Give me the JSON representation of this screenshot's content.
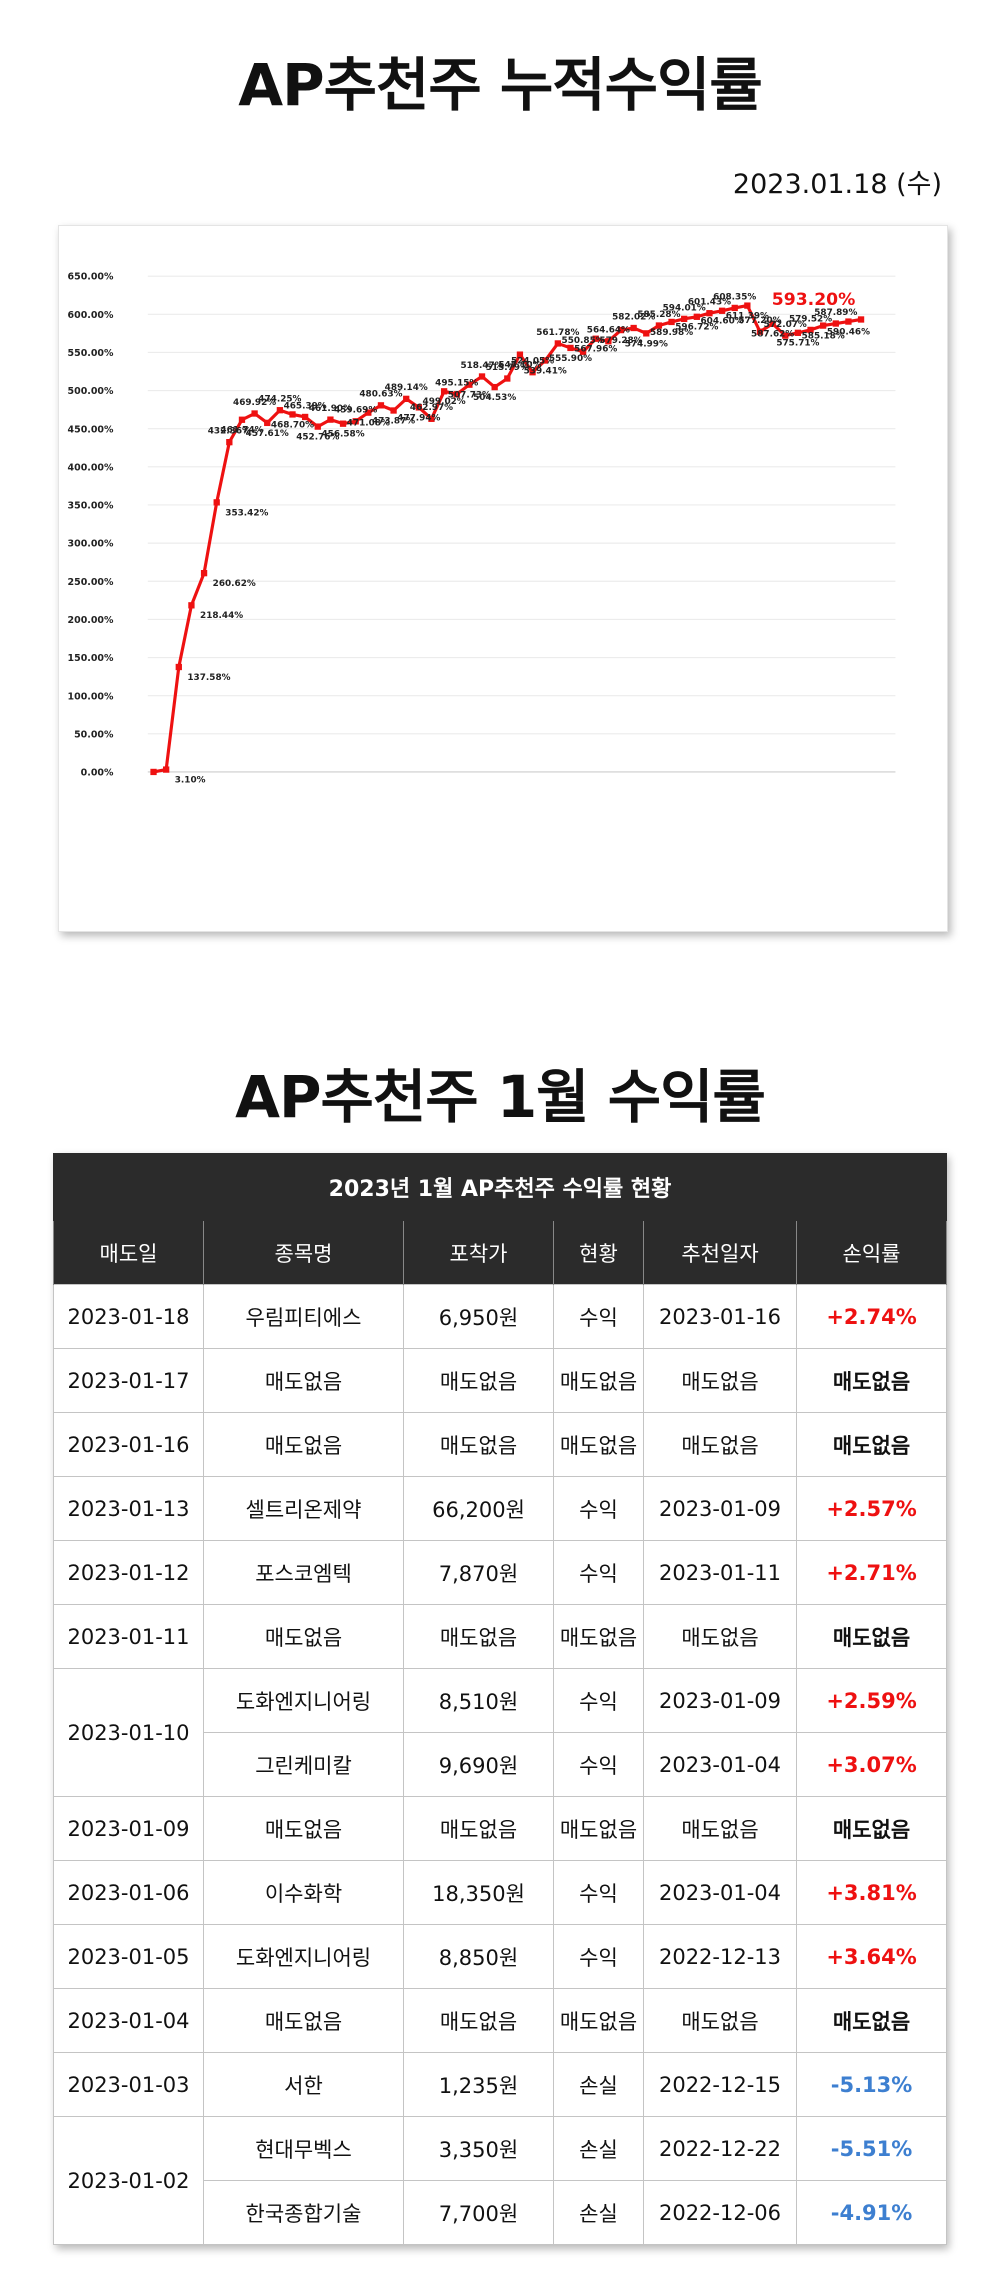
{
  "page": {
    "title1": "AP추천주 누적수익률",
    "date": "2023.01.18 (수)",
    "title2": "AP추천주 1월 수익률"
  },
  "chart_data": {
    "type": "line",
    "title": "",
    "ylim": [
      0,
      650
    ],
    "y_ticks": [
      "0.00%",
      "50.00%",
      "100.00%",
      "150.00%",
      "200.00%",
      "250.00%",
      "300.00%",
      "350.00%",
      "400.00%",
      "450.00%",
      "500.00%",
      "550.00%",
      "600.00%",
      "650.00%"
    ],
    "grid": true,
    "legend": "none",
    "line_color": "#ee1111",
    "highlight_label": "593.20%",
    "series": [
      {
        "values": [
          0,
          3.1,
          137.58,
          218.44,
          260.62,
          353.42,
          432.36,
          461.74,
          469.92,
          457.61,
          474.25,
          468.7,
          465.39,
          452.76,
          461.9,
          456.58,
          459.69,
          471.08,
          480.63,
          473.87,
          489.14,
          477.94,
          462.97,
          499.02,
          495.15,
          507.73,
          518.47,
          504.53,
          515.79,
          547.1,
          524.05,
          539.41,
          561.78,
          555.9,
          550.85,
          567.96,
          564.64,
          579.28,
          582.02,
          574.99,
          585.28,
          589.98,
          594.01,
          596.72,
          601.43,
          604.6,
          608.35,
          611.39,
          577.2,
          587.62,
          572.07,
          575.71,
          579.52,
          585.18,
          587.89,
          590.46,
          593.2
        ],
        "labels": [
          "",
          "3.10%",
          "137.58%",
          "218.44%",
          "260.62%",
          "353.42%",
          "432.36%",
          "461.74%",
          "469.92%",
          "457.61%",
          "474.25%",
          "468.70%",
          "465.39%",
          "452.76%",
          "461.90%",
          "456.58%",
          "459.69%",
          "471.08%",
          "480.63%",
          "473.87%",
          "489.14%",
          "477.94%",
          "462.97%",
          "499.02%",
          "495.15%",
          "507.73%",
          "518.47%",
          "504.53%",
          "515.79%",
          "547.10%",
          "524.05%",
          "539.41%",
          "561.78%",
          "555.90%",
          "550.85%",
          "567.96%",
          "564.64%",
          "579.28%",
          "582.02%",
          "574.99%",
          "585.28%",
          "589.98%",
          "594.01%",
          "596.72%",
          "601.43%",
          "604.60%",
          "608.35%",
          "611.39%",
          "577.20%",
          "587.62%",
          "572.07%",
          "575.71%",
          "579.52%",
          "585.18%",
          "587.89%",
          "590.46%",
          ""
        ]
      }
    ]
  },
  "table": {
    "caption": "2023년 1월 AP추천주 수익률 현황",
    "headers": [
      "매도일",
      "종목명",
      "포착가",
      "현황",
      "추천일자",
      "손익률"
    ],
    "rows": [
      {
        "date": "2023-01-18",
        "span": 1,
        "items": [
          {
            "name": "우림피티에스",
            "price": "6,950원",
            "status": "수익",
            "rec": "2023-01-16",
            "pct": "+2.74%",
            "kind": "gain"
          }
        ]
      },
      {
        "date": "2023-01-17",
        "span": 1,
        "items": [
          {
            "name": "매도없음",
            "price": "매도없음",
            "status": "매도없음",
            "rec": "매도없음",
            "pct": "매도없음",
            "kind": "none"
          }
        ]
      },
      {
        "date": "2023-01-16",
        "span": 1,
        "items": [
          {
            "name": "매도없음",
            "price": "매도없음",
            "status": "매도없음",
            "rec": "매도없음",
            "pct": "매도없음",
            "kind": "none"
          }
        ]
      },
      {
        "date": "2023-01-13",
        "span": 1,
        "items": [
          {
            "name": "셀트리온제약",
            "price": "66,200원",
            "status": "수익",
            "rec": "2023-01-09",
            "pct": "+2.57%",
            "kind": "gain"
          }
        ]
      },
      {
        "date": "2023-01-12",
        "span": 1,
        "items": [
          {
            "name": "포스코엠텍",
            "price": "7,870원",
            "status": "수익",
            "rec": "2023-01-11",
            "pct": "+2.71%",
            "kind": "gain"
          }
        ]
      },
      {
        "date": "2023-01-11",
        "span": 1,
        "items": [
          {
            "name": "매도없음",
            "price": "매도없음",
            "status": "매도없음",
            "rec": "매도없음",
            "pct": "매도없음",
            "kind": "none"
          }
        ]
      },
      {
        "date": "2023-01-10",
        "span": 2,
        "items": [
          {
            "name": "도화엔지니어링",
            "price": "8,510원",
            "status": "수익",
            "rec": "2023-01-09",
            "pct": "+2.59%",
            "kind": "gain"
          },
          {
            "name": "그린케미칼",
            "price": "9,690원",
            "status": "수익",
            "rec": "2023-01-04",
            "pct": "+3.07%",
            "kind": "gain"
          }
        ]
      },
      {
        "date": "2023-01-09",
        "span": 1,
        "items": [
          {
            "name": "매도없음",
            "price": "매도없음",
            "status": "매도없음",
            "rec": "매도없음",
            "pct": "매도없음",
            "kind": "none"
          }
        ]
      },
      {
        "date": "2023-01-06",
        "span": 1,
        "items": [
          {
            "name": "이수화학",
            "price": "18,350원",
            "status": "수익",
            "rec": "2023-01-04",
            "pct": "+3.81%",
            "kind": "gain"
          }
        ]
      },
      {
        "date": "2023-01-05",
        "span": 1,
        "items": [
          {
            "name": "도화엔지니어링",
            "price": "8,850원",
            "status": "수익",
            "rec": "2022-12-13",
            "pct": "+3.64%",
            "kind": "gain"
          }
        ]
      },
      {
        "date": "2023-01-04",
        "span": 1,
        "items": [
          {
            "name": "매도없음",
            "price": "매도없음",
            "status": "매도없음",
            "rec": "매도없음",
            "pct": "매도없음",
            "kind": "none"
          }
        ]
      },
      {
        "date": "2023-01-03",
        "span": 1,
        "items": [
          {
            "name": "서한",
            "price": "1,235원",
            "status": "손실",
            "rec": "2022-12-15",
            "pct": "-5.13%",
            "kind": "loss"
          }
        ]
      },
      {
        "date": "2023-01-02",
        "span": 2,
        "items": [
          {
            "name": "현대무벡스",
            "price": "3,350원",
            "status": "손실",
            "rec": "2022-12-22",
            "pct": "-5.51%",
            "kind": "loss"
          },
          {
            "name": "한국종합기술",
            "price": "7,700원",
            "status": "손실",
            "rec": "2022-12-06",
            "pct": "-4.91%",
            "kind": "loss"
          }
        ]
      }
    ]
  }
}
